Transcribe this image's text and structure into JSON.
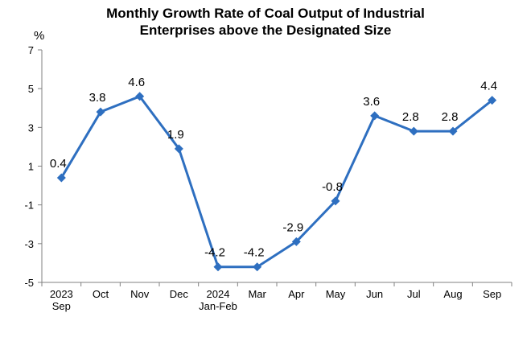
{
  "chart_data": {
    "type": "line",
    "title": [
      "Monthly Growth Rate of Coal Output of Industrial",
      "Enterprises above the Designated Size"
    ],
    "unit_label": "%",
    "categories": [
      [
        "2023",
        "Sep"
      ],
      [
        "Oct"
      ],
      [
        "Nov"
      ],
      [
        "Dec"
      ],
      [
        "2024",
        "Jan-Feb"
      ],
      [
        "Mar"
      ],
      [
        "Apr"
      ],
      [
        "May"
      ],
      [
        "Jun"
      ],
      [
        "Jul"
      ],
      [
        "Aug"
      ],
      [
        "Sep"
      ]
    ],
    "series": [
      {
        "values": [
          0.4,
          3.8,
          4.6,
          1.9,
          -4.2,
          -4.2,
          -2.9,
          -0.8,
          3.6,
          2.8,
          2.8,
          4.4
        ],
        "labels": [
          "0.4",
          "3.8",
          "4.6",
          "1.9",
          "-4.2",
          "-4.2",
          "-2.9",
          "-0.8",
          "3.6",
          "2.8",
          "2.8",
          "4.4"
        ]
      }
    ],
    "ylim": [
      -5,
      7
    ],
    "yticks": [
      "7",
      "5",
      "3",
      "1",
      "-1",
      "-3",
      "-5"
    ],
    "grid": false,
    "colors": {
      "line": "#2E6FC0",
      "marker": "#2E6FC0",
      "axis": "#808080"
    }
  }
}
